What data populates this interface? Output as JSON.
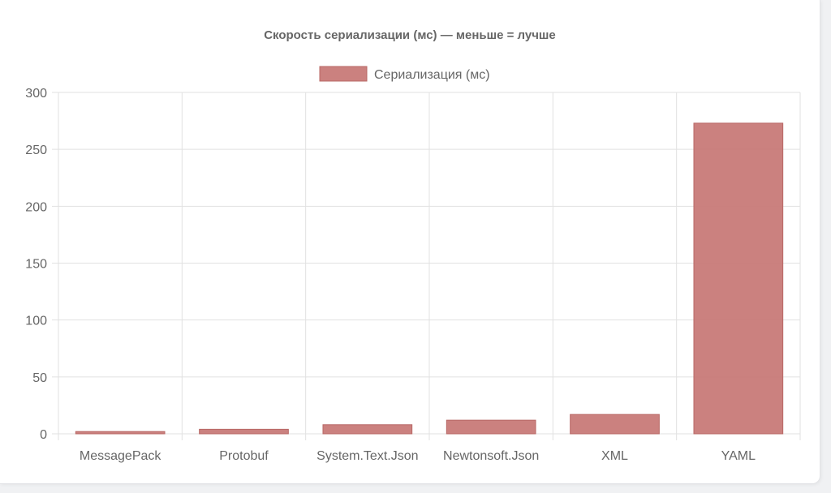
{
  "chart_data": {
    "type": "bar",
    "title": "Скорость сериализации (мс) — меньше = лучше",
    "categories": [
      "MessagePack",
      "Protobuf",
      "System.Text.Json",
      "Newtonsoft.Json",
      "XML",
      "YAML"
    ],
    "series": [
      {
        "name": "Сериализация (мс)",
        "values": [
          2,
          4,
          8,
          12,
          17,
          273
        ],
        "color": "#c87a78"
      }
    ],
    "yticks": [
      0,
      50,
      100,
      150,
      200,
      250,
      300
    ],
    "ylim": [
      0,
      300
    ],
    "xlabel": "",
    "ylabel": "",
    "grid": true,
    "legend_position": "top-center"
  }
}
